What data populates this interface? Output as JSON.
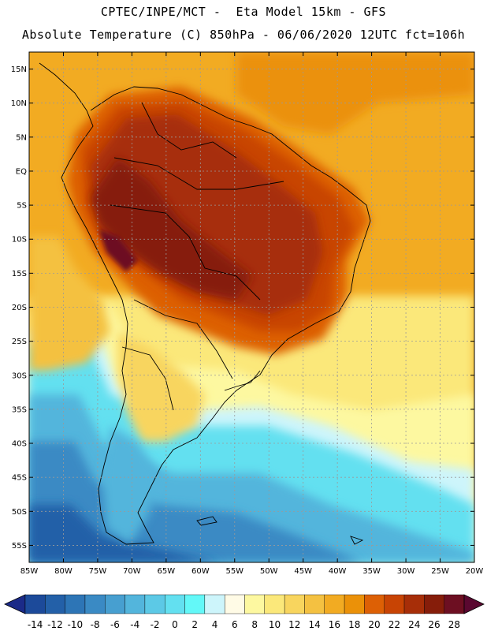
{
  "header": {
    "title_line1": "CPTEC/INPE/MCT -  Eta Model 15km - GFS",
    "title_line2": "Absolute Temperature (C) 850hPa - 06/06/2020 12UTC fct=106h"
  },
  "map": {
    "lat_labels": [
      "15N",
      "10N",
      "5N",
      "EQ",
      "5S",
      "10S",
      "15S",
      "20S",
      "25S",
      "30S",
      "35S",
      "40S",
      "45S",
      "50S",
      "55S"
    ],
    "lon_labels": [
      "85W",
      "80W",
      "75W",
      "70W",
      "65W",
      "60W",
      "55W",
      "50W",
      "45W",
      "40W",
      "35W",
      "30W",
      "25W",
      "20W"
    ],
    "lat_range": [
      17.5,
      -57.5
    ],
    "lon_range": [
      -85,
      -20
    ]
  },
  "colorbar": {
    "labels": [
      "-14",
      "-12",
      "-10",
      "-8",
      "-6",
      "-4",
      "-2",
      "0",
      "2",
      "4",
      "6",
      "8",
      "10",
      "12",
      "14",
      "16",
      "18",
      "20",
      "22",
      "24",
      "26",
      "28"
    ],
    "colors": [
      "#1c4a9a",
      "#2360a8",
      "#2d75b6",
      "#3a8ac4",
      "#479fd0",
      "#53b5dc",
      "#5cc9e6",
      "#63e0f0",
      "#63f8f8",
      "#cdf5fb",
      "#fffbe6",
      "#fdf8a0",
      "#fbe87a",
      "#f8d55e",
      "#f4c141",
      "#f2ab22",
      "#eb9108",
      "#dd6005",
      "#c84404",
      "#a72e08",
      "#861d0a",
      "#6d0f22"
    ],
    "end_left_color": "#1b2a88",
    "end_right_color": "#5a0830"
  }
}
